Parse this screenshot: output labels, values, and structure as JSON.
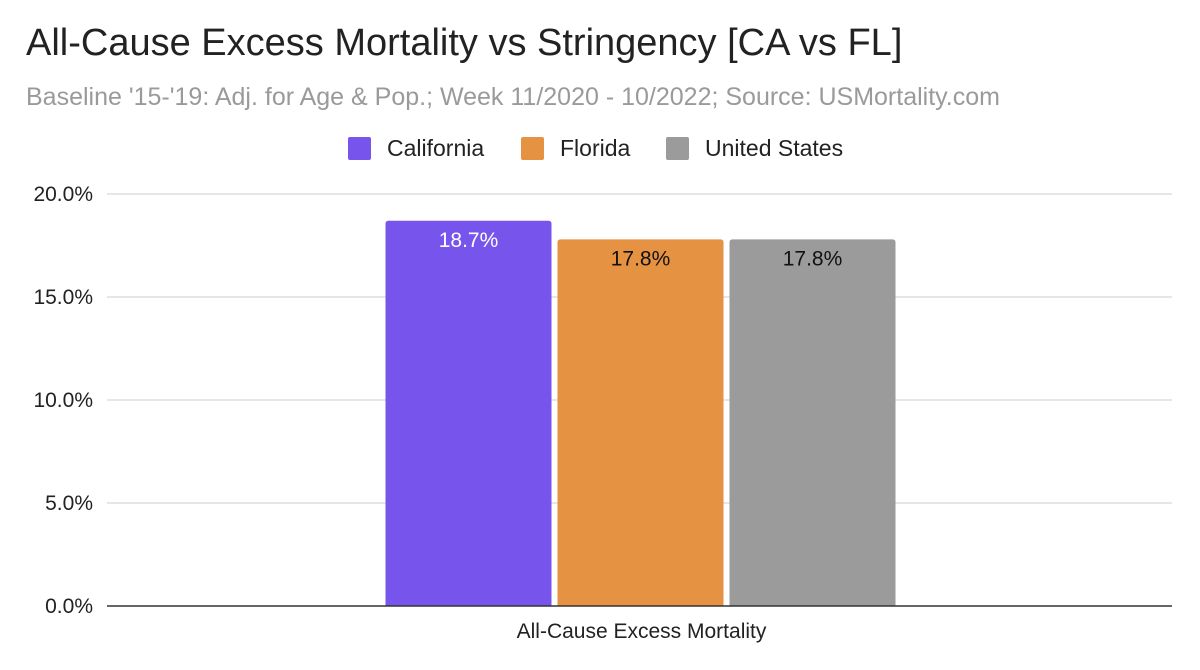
{
  "chart_data": {
    "type": "bar",
    "title": "All-Cause Excess Mortality vs Stringency [CA vs FL]",
    "subtitle": "Baseline '15-'19: Adj. for Age & Pop.; Week 11/2020 - 10/2022; Source: USMortality.com",
    "categories": [
      "All-Cause Excess Mortality"
    ],
    "series": [
      {
        "name": "California",
        "values": [
          18.7
        ],
        "data_label": "18.7%",
        "color": "#7754ec",
        "label_color": "#ffffff"
      },
      {
        "name": "Florida",
        "values": [
          17.8
        ],
        "data_label": "17.8%",
        "color": "#e69243",
        "label_color": "#111111"
      },
      {
        "name": "United States",
        "values": [
          17.8
        ],
        "data_label": "17.8%",
        "color": "#9b9b9b",
        "label_color": "#111111"
      }
    ],
    "y_ticks": [
      {
        "value": 0,
        "label": "0.0%"
      },
      {
        "value": 5,
        "label": "5.0%"
      },
      {
        "value": 10,
        "label": "10.0%"
      },
      {
        "value": 15,
        "label": "15.0%"
      },
      {
        "value": 20,
        "label": "20.0%"
      }
    ],
    "ylim": [
      0,
      20
    ],
    "grid": true,
    "legend_position": "top-center"
  }
}
